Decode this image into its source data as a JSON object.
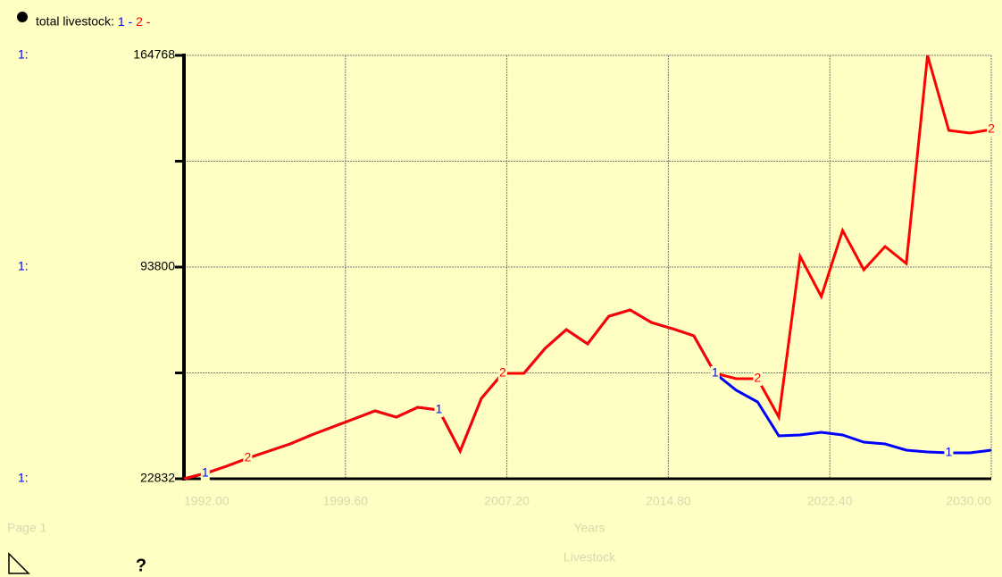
{
  "chart_data": {
    "type": "line",
    "title": "total livestock:",
    "legend_separator": "-",
    "y_prefix": "1:",
    "xlabel": "Years",
    "page_label": "Page 1",
    "footer": "Livestock",
    "help": "?",
    "x": [
      1992,
      1993,
      1994,
      1995,
      1996,
      1997,
      1998,
      1999,
      2000,
      2001,
      2002,
      2003,
      2004,
      2005,
      2006,
      2007,
      2008,
      2009,
      2010,
      2011,
      2012,
      2013,
      2014,
      2015,
      2016,
      2017,
      2018,
      2019,
      2020,
      2021,
      2022,
      2023,
      2024,
      2025,
      2026,
      2027,
      2028,
      2029,
      2030
    ],
    "series": [
      {
        "name": "1",
        "color": "#0000ff",
        "values": [
          22832,
          24629,
          27024,
          29719,
          32115,
          34510,
          37505,
          40200,
          42895,
          45589,
          43493,
          46787,
          45889,
          32115,
          49782,
          58166,
          58166,
          66550,
          72838,
          68047,
          77330,
          79426,
          75234,
          73138,
          70742,
          58166,
          52477,
          48584,
          37205,
          37505,
          38403,
          37505,
          35109,
          34510,
          32414,
          31815,
          31515,
          31515,
          32414
        ]
      },
      {
        "name": "2",
        "color": "#ff0000",
        "values": [
          22832,
          24629,
          27024,
          29719,
          32115,
          34510,
          37505,
          40200,
          42895,
          45589,
          43493,
          46787,
          45889,
          32115,
          49782,
          58166,
          58166,
          66550,
          72838,
          68047,
          77330,
          79426,
          75234,
          73138,
          70742,
          58166,
          56370,
          56370,
          43493,
          97392,
          83917,
          106076,
          92901,
          100686,
          94997,
          164768,
          139616,
          138717,
          139915
        ]
      }
    ],
    "xlim": [
      1992,
      2030
    ],
    "xticks": [
      {
        "value": 1992,
        "label": "1992.00"
      },
      {
        "value": 1999.6,
        "label": "1999.60"
      },
      {
        "value": 2007.2,
        "label": "2007.20"
      },
      {
        "value": 2014.8,
        "label": "2014.80"
      },
      {
        "value": 2022.4,
        "label": "2022.40"
      },
      {
        "value": 2030,
        "label": "2030.00"
      }
    ],
    "ylim": [
      22832,
      164768
    ],
    "yticks": [
      22832,
      93800,
      164768
    ],
    "yminorticks": [
      58316,
      129284
    ],
    "grid": true
  }
}
